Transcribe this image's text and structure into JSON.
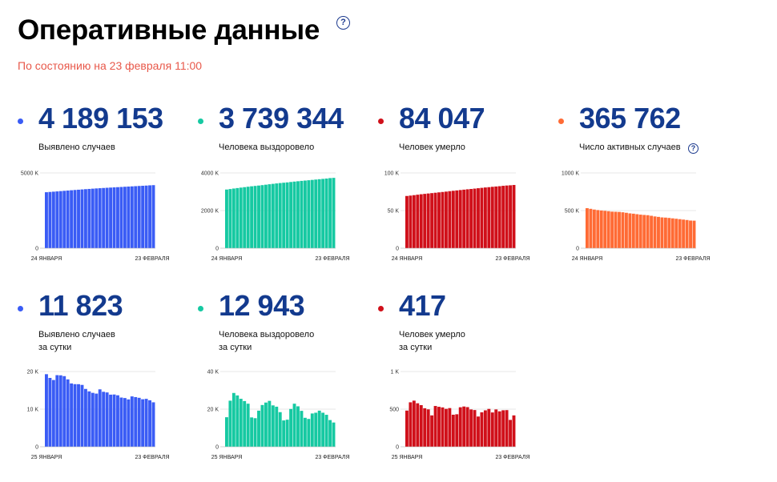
{
  "header": {
    "title": "Оперативные данные",
    "help": "?",
    "subtitle": "По состоянию на 23 февраля 11:00"
  },
  "cards": [
    {
      "value": "4 189 153",
      "label": [
        "Выявлено случаев"
      ],
      "help": "",
      "color": "#3a5cf5",
      "dot_color": "#3a5cf5",
      "chart": {
        "type": "bar",
        "ylim": [
          0,
          5000000
        ],
        "yticks": [
          {
            "v": 0,
            "t": "0"
          },
          {
            "v": 5000000,
            "t": "5000 K"
          }
        ],
        "xticks": [
          "24 ЯНВАРЯ",
          "23 ФЕВРАЛЯ"
        ],
        "values": [
          3719400,
          3737700,
          3755900,
          3774000,
          3793800,
          3813000,
          3832100,
          3850900,
          3869100,
          3886800,
          3904700,
          3921700,
          3938500,
          3955600,
          3971300,
          3986700,
          4000600,
          4015000,
          4028400,
          4041800,
          4055300,
          4068100,
          4082300,
          4095300,
          4109100,
          4122200,
          4135400,
          4147500,
          4160200,
          4177300,
          4189200
        ]
      }
    },
    {
      "value": "3 739 344",
      "label": [
        "Человека выздоровело"
      ],
      "help": "",
      "color": "#16c9a2",
      "dot_color": "#16c9a2",
      "chart": {
        "type": "bar",
        "ylim": [
          0,
          4000000
        ],
        "yticks": [
          {
            "v": 0,
            "t": "0"
          },
          {
            "v": 2000000,
            "t": "2000 K"
          },
          {
            "v": 4000000,
            "t": "4000 K"
          }
        ],
        "xticks": [
          "24 ЯНВАРЯ",
          "23 ФЕВРАЛЯ"
        ],
        "values": [
          3118300,
          3144500,
          3171900,
          3196300,
          3221000,
          3244200,
          3267800,
          3292000,
          3311200,
          3330600,
          3352700,
          3375600,
          3399600,
          3420700,
          3442400,
          3463400,
          3480900,
          3498100,
          3519000,
          3540500,
          3559300,
          3578800,
          3595000,
          3612000,
          3630800,
          3648700,
          3667200,
          3684300,
          3702200,
          3726400,
          3739300
        ]
      }
    },
    {
      "value": "84 047",
      "label": [
        "Человек умерло"
      ],
      "help": "",
      "color": "#d0101a",
      "dot_color": "#d0101a",
      "chart": {
        "type": "bar",
        "ylim": [
          0,
          100000
        ],
        "yticks": [
          {
            "v": 0,
            "t": "0"
          },
          {
            "v": 50000,
            "t": "50 K"
          },
          {
            "v": 100000,
            "t": "100 K"
          }
        ],
        "xticks": [
          "24 ЯНВАРЯ",
          "23 ФЕВРАЛЯ"
        ],
        "values": [
          69400,
          69900,
          70500,
          71100,
          71700,
          72200,
          72700,
          73200,
          73700,
          74200,
          74700,
          75200,
          75800,
          76300,
          76800,
          77300,
          77800,
          78300,
          78700,
          79200,
          79700,
          80200,
          80700,
          81100,
          81600,
          82000,
          82400,
          82900,
          83300,
          83600,
          84000
        ]
      }
    },
    {
      "value": "365 762",
      "label": [
        "Число активных случаев"
      ],
      "help": "?",
      "color": "#ff6b35",
      "dot_color": "#ff6b35",
      "chart": {
        "type": "bar",
        "ylim": [
          0,
          1000000
        ],
        "yticks": [
          {
            "v": 0,
            "t": "0"
          },
          {
            "v": 500000,
            "t": "500 K"
          },
          {
            "v": 1000000,
            "t": "1000 K"
          }
        ],
        "xticks": [
          "24 ЯНВАРЯ",
          "23 ФЕВРАЛЯ"
        ],
        "values": [
          531700,
          523300,
          513500,
          506600,
          501100,
          496600,
          491600,
          485700,
          484200,
          482000,
          477300,
          470900,
          463100,
          458600,
          452100,
          446000,
          441900,
          438600,
          430700,
          422100,
          416300,
          409100,
          406600,
          402200,
          396700,
          391500,
          386000,
          380300,
          374700,
          367300,
          365800
        ]
      }
    },
    {
      "value": "11 823",
      "label": [
        "Выявлено случаев",
        "за сутки"
      ],
      "help": "",
      "color": "#3a5cf5",
      "dot_color": "#3a5cf5",
      "chart": {
        "type": "bar",
        "ylim": [
          0,
          20000
        ],
        "yticks": [
          {
            "v": 0,
            "t": "0"
          },
          {
            "v": 10000,
            "t": "10 K"
          },
          {
            "v": 20000,
            "t": "20 K"
          }
        ],
        "xticks": [
          "25 ЯНВАРЯ",
          "23 ФЕВРАЛЯ"
        ],
        "values": [
          19290,
          18300,
          17740,
          19030,
          18990,
          18770,
          17910,
          16830,
          16640,
          16630,
          16440,
          15370,
          14720,
          14330,
          14130,
          15260,
          14610,
          14440,
          13850,
          13890,
          13680,
          13080,
          12950,
          12590,
          13390,
          13200,
          13010,
          12630,
          12740,
          12350,
          11820
        ]
      }
    },
    {
      "value": "12 943",
      "label": [
        "Человека выздоровело",
        "за сутки"
      ],
      "help": "",
      "color": "#16c9a2",
      "dot_color": "#16c9a2",
      "chart": {
        "type": "bar",
        "ylim": [
          0,
          40000
        ],
        "yticks": [
          {
            "v": 0,
            "t": "0"
          },
          {
            "v": 20000,
            "t": "20 K"
          },
          {
            "v": 40000,
            "t": "40 K"
          }
        ],
        "xticks": [
          "25 ЯНВАРЯ",
          "23 ФЕВРАЛЯ"
        ],
        "values": [
          15700,
          24500,
          28600,
          27300,
          25500,
          24300,
          22900,
          15600,
          15200,
          19200,
          22200,
          23500,
          24400,
          22000,
          21300,
          18400,
          14000,
          14400,
          20100,
          22900,
          21500,
          19100,
          15400,
          14800,
          17700,
          18100,
          19200,
          18100,
          17000,
          14200,
          12900
        ]
      }
    },
    {
      "value": "417",
      "label": [
        "Человек умерло",
        "за сутки"
      ],
      "help": "",
      "color": "#d0101a",
      "dot_color": "#d0101a",
      "chart": {
        "type": "bar",
        "ylim": [
          0,
          1000
        ],
        "yticks": [
          {
            "v": 0,
            "t": "0"
          },
          {
            "v": 500,
            "t": "500"
          },
          {
            "v": 1000,
            "t": "1 K"
          }
        ],
        "xticks": [
          "25 ЯНВАРЯ",
          "23 ФЕВРАЛЯ"
        ],
        "values": [
          481,
          591,
          613,
          578,
          553,
          512,
          497,
          417,
          542,
          531,
          523,
          504,
          514,
          426,
          432,
          525,
          535,
          527,
          496,
          488,
          402,
          458,
          484,
          503,
          456,
          496,
          471,
          485,
          487,
          357,
          417
        ]
      }
    }
  ]
}
